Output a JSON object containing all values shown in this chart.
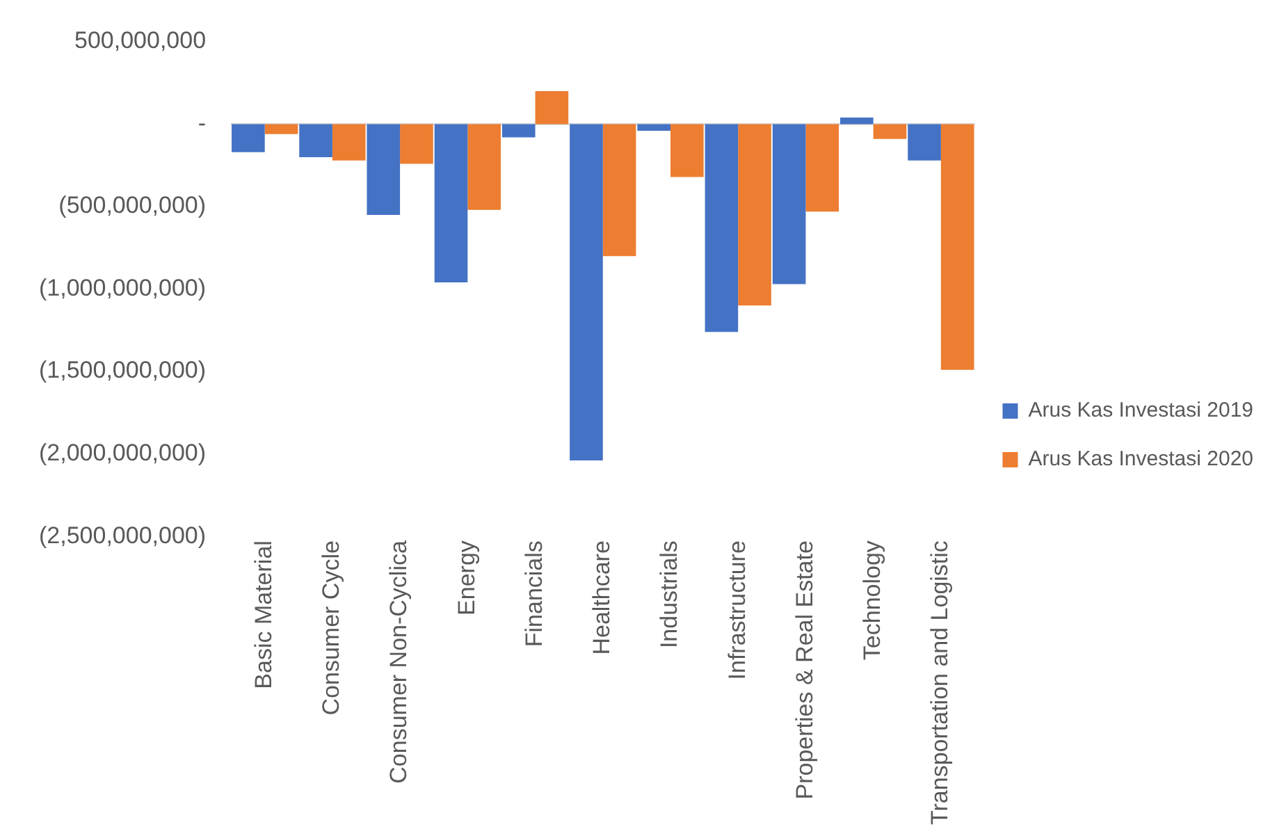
{
  "chart_data": {
    "type": "bar",
    "categories": [
      "Basic Material",
      "Consumer Cycle",
      "Consumer Non-Cyclica",
      "Energy",
      "Financials",
      "Healthcare",
      "Industrials",
      "Infrastructure",
      "Properties & Real Estate",
      "Technology",
      "Transportation and Logistic"
    ],
    "series": [
      {
        "name": "Arus Kas Investasi 2019",
        "color": "#4472c4",
        "values": [
          -170000000,
          -200000000,
          -550000000,
          -960000000,
          -80000000,
          -2040000000,
          -40000000,
          -1260000000,
          -970000000,
          40000000,
          -220000000
        ]
      },
      {
        "name": "Arus Kas Investasi 2020",
        "color": "#ed7d31",
        "values": [
          -60000000,
          -220000000,
          -240000000,
          -520000000,
          200000000,
          -800000000,
          -320000000,
          -1100000000,
          -530000000,
          -90000000,
          -1490000000
        ]
      }
    ],
    "ylim": [
      -2500000000,
      500000000
    ],
    "yticks": [
      {
        "value": 500000000,
        "label": "500,000,000"
      },
      {
        "value": 0,
        "label": "-"
      },
      {
        "value": -500000000,
        "label": "(500,000,000)"
      },
      {
        "value": -1000000000,
        "label": "(1,000,000,000)"
      },
      {
        "value": -1500000000,
        "label": "(1,500,000,000)"
      },
      {
        "value": -2000000000,
        "label": "(2,000,000,000)"
      },
      {
        "value": -2500000000,
        "label": "(2,500,000,000)"
      }
    ],
    "ref_lines": [
      {
        "axis": "y",
        "value": 0,
        "color": "#d9d9d9"
      }
    ],
    "grid": false,
    "legend": "right"
  }
}
